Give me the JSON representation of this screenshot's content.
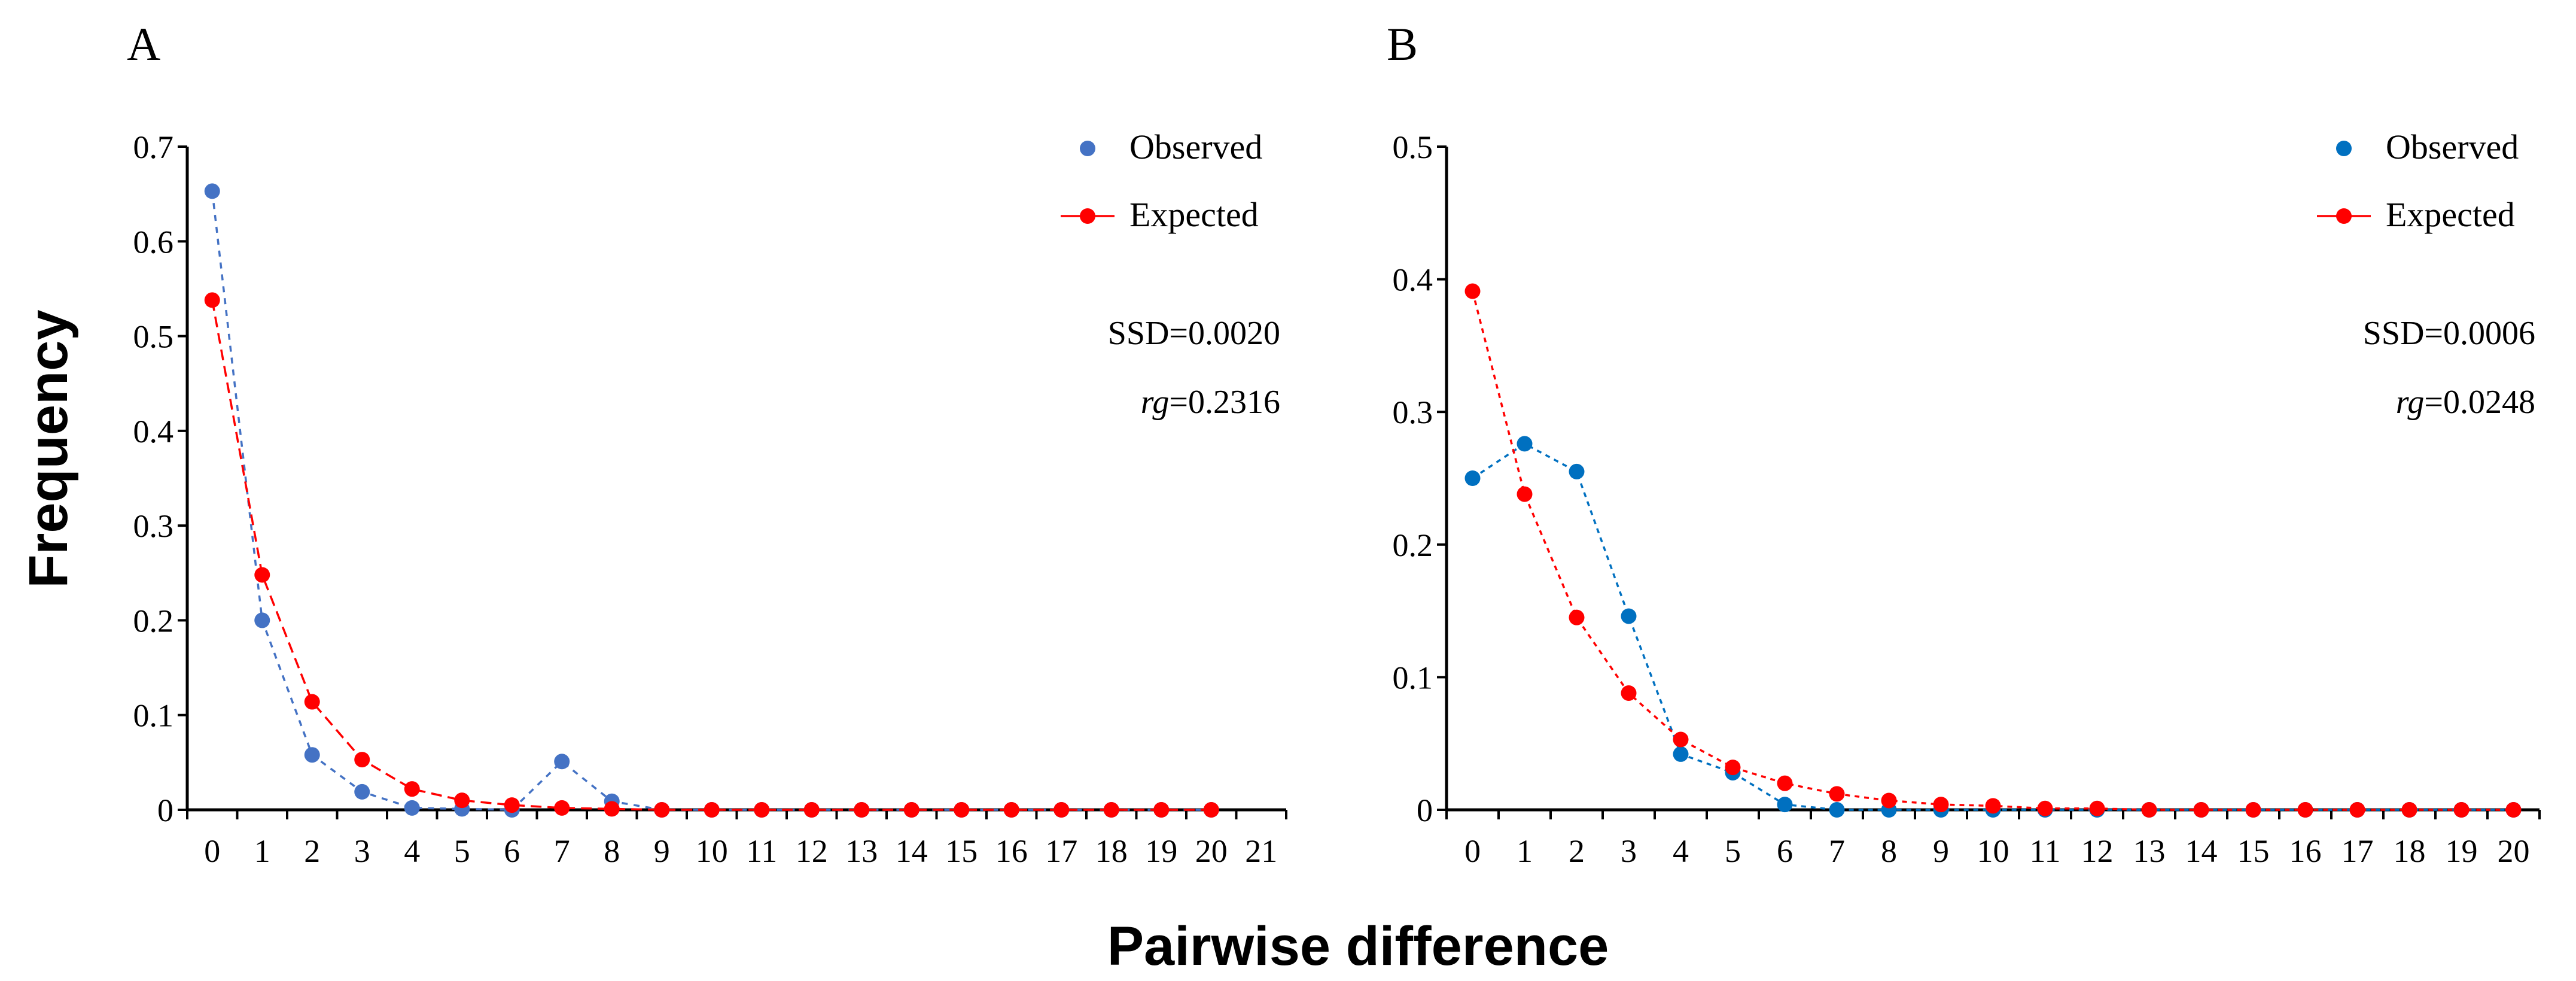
{
  "figure": {
    "ylabel": "Frequency",
    "xlabel": "Pairwise difference"
  },
  "chart_data": [
    {
      "type": "line",
      "panel_label": "A",
      "x": [
        0,
        1,
        2,
        3,
        4,
        5,
        6,
        7,
        8,
        9,
        10,
        11,
        12,
        13,
        14,
        15,
        16,
        17,
        18,
        19,
        20
      ],
      "x_ticks": [
        0,
        1,
        2,
        3,
        4,
        5,
        6,
        7,
        8,
        9,
        10,
        11,
        12,
        13,
        14,
        15,
        16,
        17,
        18,
        19,
        20,
        21
      ],
      "y_ticks": [
        "0",
        "0.1",
        "0.2",
        "0.3",
        "0.4",
        "0.5",
        "0.6",
        "0.7"
      ],
      "ylim": [
        0,
        0.7
      ],
      "xlim": [
        -0.5,
        21.5
      ],
      "series": [
        {
          "name": "Observed",
          "color": "#4472C4",
          "line_style": "dotted",
          "values": [
            0.653,
            0.2,
            0.058,
            0.019,
            0.002,
            0.001,
            0.0,
            0.051,
            0.009,
            0,
            0,
            0,
            0,
            0,
            0,
            0,
            0,
            0,
            0,
            0,
            0
          ]
        },
        {
          "name": "Expected",
          "color": "#FF0000",
          "line_style": "dashed",
          "values": [
            0.538,
            0.248,
            0.114,
            0.053,
            0.022,
            0.01,
            0.005,
            0.002,
            0.001,
            0,
            0,
            0,
            0,
            0,
            0,
            0,
            0,
            0,
            0,
            0,
            0
          ]
        }
      ],
      "stats": {
        "ssd": "SSD=0.0020",
        "rg_label": "rg",
        "rg_value": "=0.2316"
      }
    },
    {
      "type": "line",
      "panel_label": "B",
      "x": [
        0,
        1,
        2,
        3,
        4,
        5,
        6,
        7,
        8,
        9,
        10,
        11,
        12,
        13,
        14,
        15,
        16,
        17,
        18,
        19,
        20
      ],
      "x_ticks": [
        0,
        1,
        2,
        3,
        4,
        5,
        6,
        7,
        8,
        9,
        10,
        11,
        12,
        13,
        14,
        15,
        16,
        17,
        18,
        19,
        20
      ],
      "y_ticks": [
        "0",
        "0.1",
        "0.2",
        "0.3",
        "0.4",
        "0.5"
      ],
      "ylim": [
        0,
        0.5
      ],
      "xlim": [
        -0.5,
        20.5
      ],
      "series": [
        {
          "name": "Observed",
          "color": "#0070C0",
          "line_style": "dotted",
          "values": [
            0.25,
            0.276,
            0.255,
            0.146,
            0.042,
            0.028,
            0.004,
            0.0,
            0.0,
            0.0,
            0,
            0,
            0,
            0,
            0,
            0,
            0,
            0,
            0,
            0,
            0
          ]
        },
        {
          "name": "Expected",
          "color": "#FF0000",
          "line_style": "dotted",
          "values": [
            0.391,
            0.238,
            0.145,
            0.088,
            0.053,
            0.032,
            0.02,
            0.012,
            0.007,
            0.004,
            0.003,
            0.001,
            0.001,
            0,
            0,
            0,
            0,
            0,
            0,
            0,
            0
          ]
        }
      ],
      "stats": {
        "ssd": "SSD=0.0006",
        "rg_label": "rg",
        "rg_value": "=0.0248"
      }
    }
  ]
}
